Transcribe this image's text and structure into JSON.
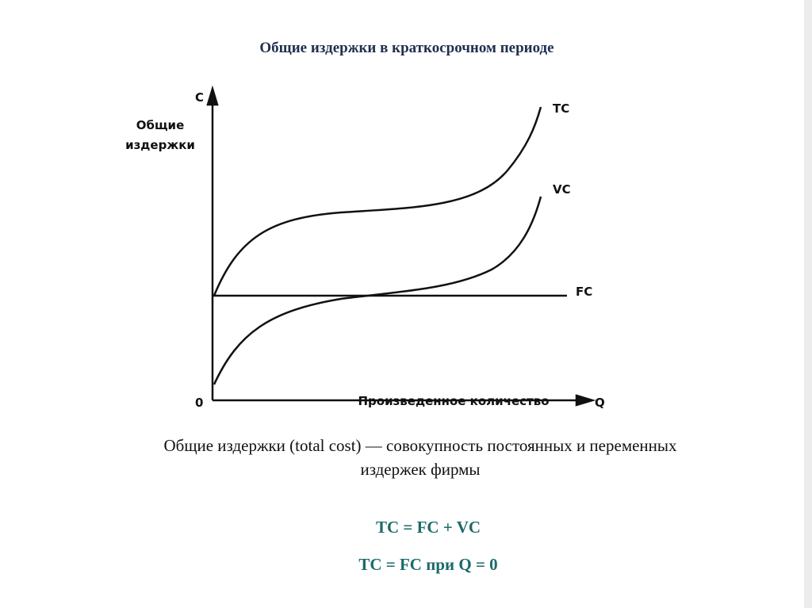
{
  "title": "Общие издержки в краткосрочном периоде",
  "diagram": {
    "y_axis_letter": "C",
    "y_axis_label": [
      "Общие",
      "издержки"
    ],
    "x_axis_letter": "Q",
    "x_axis_label": "Произведенное количество",
    "origin": "0",
    "curves": [
      "TC",
      "VC",
      "FC"
    ]
  },
  "description": [
    "Общие издержки (total cost) — совокупность постоянных и переменных",
    "издержек фирмы"
  ],
  "formulas": [
    "TC = FC + VC",
    "TC = FC при Q = 0"
  ]
}
